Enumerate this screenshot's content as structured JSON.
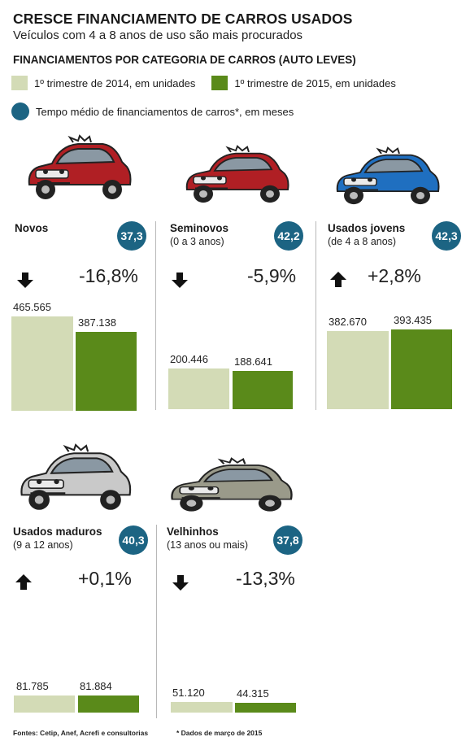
{
  "header": {
    "title": "CRESCE FINANCIAMENTO DE CARROS USADOS",
    "subtitle": "Veículos com 4 a 8 anos de uso são mais procurados",
    "section": "FINANCIAMENTOS POR CATEGORIA DE CARROS (AUTO LEVES)"
  },
  "legend": {
    "series1": "1º trimestre de 2014, em unidades",
    "series2": "1º trimestre de 2015, em unidades",
    "badge": "Tempo médio de financiamentos de carros*, em meses"
  },
  "colors": {
    "series1": "#d3dbb6",
    "series2": "#5a8a1a",
    "badge": "#1c6483"
  },
  "chart_data": {
    "type": "bar",
    "title": "CRESCE FINANCIAMENTO DE CARROS USADOS",
    "categories": [
      "Novos",
      "Seminovos",
      "Usados jovens",
      "Usados maduros",
      "Velhinhos"
    ],
    "series": [
      {
        "name": "1º trimestre de 2014, em unidades",
        "values": [
          465565,
          200446,
          382670,
          81785,
          51120
        ]
      },
      {
        "name": "1º trimestre de 2015, em unidades",
        "values": [
          387138,
          188641,
          393435,
          81884,
          44315
        ]
      }
    ],
    "panels": [
      {
        "name": "Novos",
        "sub": "",
        "badge": "37,3",
        "change": "-16,8%",
        "dir": "down",
        "v1": 465565,
        "v2": 387138,
        "l1": "465.565",
        "l2": "387.138",
        "car_color": "#b01f24"
      },
      {
        "name": "Seminovos",
        "sub": "(0 a 3 anos)",
        "badge": "42,2",
        "change": "-5,9%",
        "dir": "down",
        "v1": 200446,
        "v2": 188641,
        "l1": "200.446",
        "l2": "188.641",
        "car_color": "#b01f24"
      },
      {
        "name": "Usados jovens",
        "sub": "(de 4 a 8 anos)",
        "badge": "42,3",
        "change": "+2,8%",
        "dir": "up",
        "v1": 382670,
        "v2": 393435,
        "l1": "382.670",
        "l2": "393.435",
        "car_color": "#1f6fc0"
      },
      {
        "name": "Usados maduros",
        "sub": "(9 a 12 anos)",
        "badge": "40,3",
        "change": "+0,1%",
        "dir": "up",
        "v1": 81785,
        "v2": 81884,
        "l1": "81.785",
        "l2": "81.884",
        "car_color": "#c9c9c9"
      },
      {
        "name": "Velhinhos",
        "sub": "(13 anos ou mais)",
        "badge": "37,8",
        "change": "-13,3%",
        "dir": "down",
        "v1": 51120,
        "v2": 44315,
        "l1": "51.120",
        "l2": "44.315",
        "car_color": "#9a9a8a"
      }
    ]
  },
  "footer": {
    "sources": "Fontes: Cetip, Anef, Acrefi e consultorias",
    "note": "* Dados de março de 2015"
  }
}
